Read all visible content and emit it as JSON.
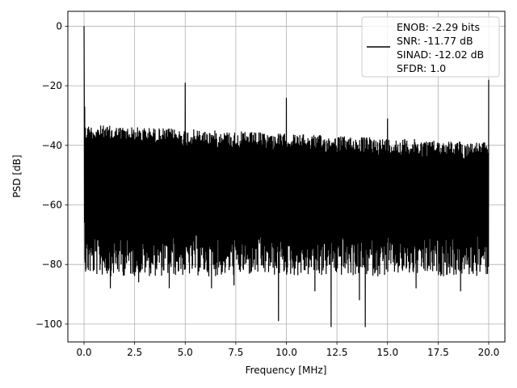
{
  "chart_data": {
    "type": "line",
    "xlabel": "Frequency [MHz]",
    "ylabel": "PSD [dB]",
    "xlim": [
      -0.8,
      20.8
    ],
    "ylim": [
      -106,
      5
    ],
    "x_ticks": [
      0.0,
      2.5,
      5.0,
      7.5,
      10.0,
      12.5,
      15.0,
      17.5,
      20.0
    ],
    "x_tick_labels": [
      "0.0",
      "2.5",
      "5.0",
      "7.5",
      "10.0",
      "12.5",
      "15.0",
      "17.5",
      "20.0"
    ],
    "y_ticks": [
      0,
      -20,
      -40,
      -60,
      -80,
      -100
    ],
    "y_tick_labels": [
      "0",
      "−20",
      "−40",
      "−60",
      "−80",
      "−100"
    ],
    "grid": true,
    "legend_position": "top-right",
    "series": [
      {
        "color": "#000000",
        "description_points": [
          {
            "x": 0.0,
            "y": 0
          },
          {
            "x": 5.0,
            "y": -19
          },
          {
            "x": 10.0,
            "y": -24
          },
          {
            "x": 15.0,
            "y": -31
          },
          {
            "x": 20.0,
            "y": -18
          }
        ],
        "noise_floor_top_start": -33,
        "noise_floor_top_end": -39,
        "noise_floor_bottom_typical": -78,
        "minimum_dips": [
          {
            "x": 9.6,
            "y": -99
          },
          {
            "x": 12.2,
            "y": -101
          },
          {
            "x": 13.9,
            "y": -101
          }
        ]
      }
    ],
    "legend_lines": [
      "ENOB: -2.29 bits",
      "SNR: -11.77 dB",
      "SINAD: -12.02 dB",
      "SFDR: 1.0"
    ]
  }
}
